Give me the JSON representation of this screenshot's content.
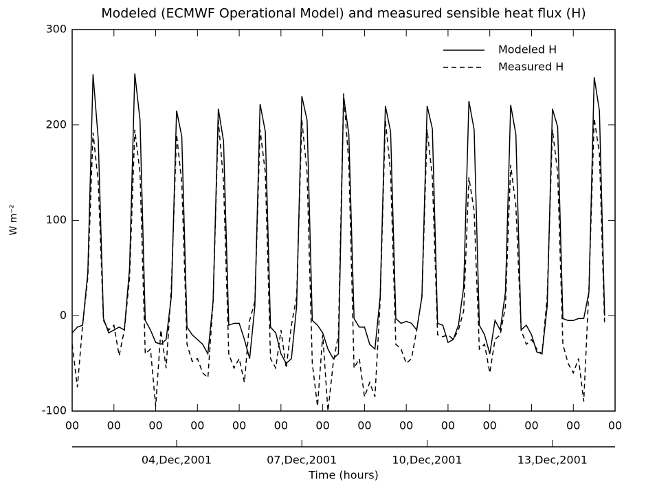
{
  "chart_data": {
    "type": "line",
    "title": "Modeled (ECMWF Operational Model) and measured sensible heat flux (H)",
    "xlabel": "Time (hours)",
    "ylabel": "W m⁻²",
    "x": [
      0,
      3,
      6,
      9,
      12,
      15,
      18,
      21,
      24,
      27,
      30,
      33,
      36,
      39,
      42,
      45,
      48,
      51,
      54,
      57,
      60,
      63,
      66,
      69,
      72,
      75,
      78,
      81,
      84,
      87,
      90,
      93,
      96,
      99,
      102,
      105,
      108,
      111,
      114,
      117,
      120,
      123,
      126,
      129,
      132,
      135,
      138,
      141,
      144,
      147,
      150,
      153,
      156,
      159,
      162,
      165,
      168,
      171,
      174,
      177,
      180,
      183,
      186,
      189,
      192,
      195,
      198,
      201,
      204,
      207,
      210,
      213,
      216,
      219,
      222,
      225,
      228,
      231,
      234,
      237,
      240,
      243,
      246,
      249,
      252,
      255,
      258,
      261,
      264,
      267,
      270,
      273,
      276,
      279,
      282,
      285,
      288,
      291,
      294,
      297,
      300,
      303,
      306
    ],
    "series": [
      {
        "name": "Modeled H",
        "color": "#000000",
        "style": "solid",
        "values": [
          -18,
          -12,
          -10,
          45,
          253,
          185,
          -3,
          -18,
          -15,
          -12,
          -15,
          50,
          254,
          205,
          -5,
          -15,
          -28,
          -30,
          -25,
          20,
          215,
          188,
          -12,
          -20,
          -25,
          -30,
          -40,
          15,
          217,
          183,
          -10,
          -8,
          -8,
          -25,
          -45,
          10,
          222,
          193,
          -12,
          -18,
          -40,
          -50,
          -45,
          10,
          230,
          205,
          -5,
          -10,
          -18,
          -35,
          -45,
          -40,
          230,
          190,
          -3,
          -12,
          -12,
          -30,
          -35,
          20,
          220,
          193,
          -3,
          -8,
          -6,
          -8,
          -15,
          20,
          220,
          196,
          -8,
          -10,
          -28,
          -25,
          -10,
          30,
          225,
          195,
          -10,
          -20,
          -40,
          -5,
          -15,
          25,
          221,
          190,
          -15,
          -10,
          -20,
          -38,
          -40,
          10,
          217,
          198,
          -3,
          -5,
          -5,
          -3,
          -3,
          25,
          250,
          215,
          0
        ]
      },
      {
        "name": "Measured H",
        "color": "#000000",
        "style": "dashed",
        "values": [
          -30,
          -75,
          -10,
          40,
          192,
          140,
          -5,
          -15,
          -10,
          -42,
          -15,
          40,
          195,
          150,
          -40,
          -35,
          -95,
          -15,
          -55,
          30,
          190,
          140,
          -30,
          -48,
          -45,
          -60,
          -65,
          15,
          205,
          140,
          -40,
          -55,
          -45,
          -70,
          -5,
          15,
          195,
          150,
          -45,
          -55,
          -15,
          -55,
          -10,
          20,
          205,
          150,
          -50,
          -95,
          -20,
          -100,
          -50,
          -20,
          233,
          160,
          -55,
          -45,
          -85,
          -70,
          -85,
          15,
          205,
          150,
          -30,
          -35,
          -50,
          -45,
          -15,
          20,
          195,
          145,
          -20,
          -22,
          -20,
          -25,
          -15,
          5,
          145,
          110,
          -35,
          -30,
          -60,
          -25,
          -20,
          10,
          158,
          115,
          -15,
          -30,
          -25,
          -35,
          -40,
          20,
          195,
          150,
          -30,
          -50,
          -60,
          -45,
          -90,
          30,
          207,
          170,
          -10
        ]
      }
    ],
    "xlim": [
      0,
      312
    ],
    "xticks": [
      {
        "value": 0,
        "label": "00"
      },
      {
        "value": 24,
        "label": "00"
      },
      {
        "value": 48,
        "label": "00"
      },
      {
        "value": 72,
        "label": "00"
      },
      {
        "value": 96,
        "label": "00"
      },
      {
        "value": 120,
        "label": "00"
      },
      {
        "value": 144,
        "label": "00"
      },
      {
        "value": 168,
        "label": "00"
      },
      {
        "value": 192,
        "label": "00"
      },
      {
        "value": 216,
        "label": "00"
      },
      {
        "value": 240,
        "label": "00"
      },
      {
        "value": 264,
        "label": "00"
      },
      {
        "value": 288,
        "label": "00"
      },
      {
        "value": 312,
        "label": "00"
      }
    ],
    "x2ticks": [
      {
        "value": 60,
        "label": "04,Dec,2001"
      },
      {
        "value": 132,
        "label": "07,Dec,2001"
      },
      {
        "value": 204,
        "label": "10,Dec,2001"
      },
      {
        "value": 276,
        "label": "13,Dec,2001"
      }
    ],
    "ylim": [
      -100,
      300
    ],
    "yticks": [
      -100,
      0,
      100,
      200,
      300
    ],
    "legend": "upper right"
  }
}
